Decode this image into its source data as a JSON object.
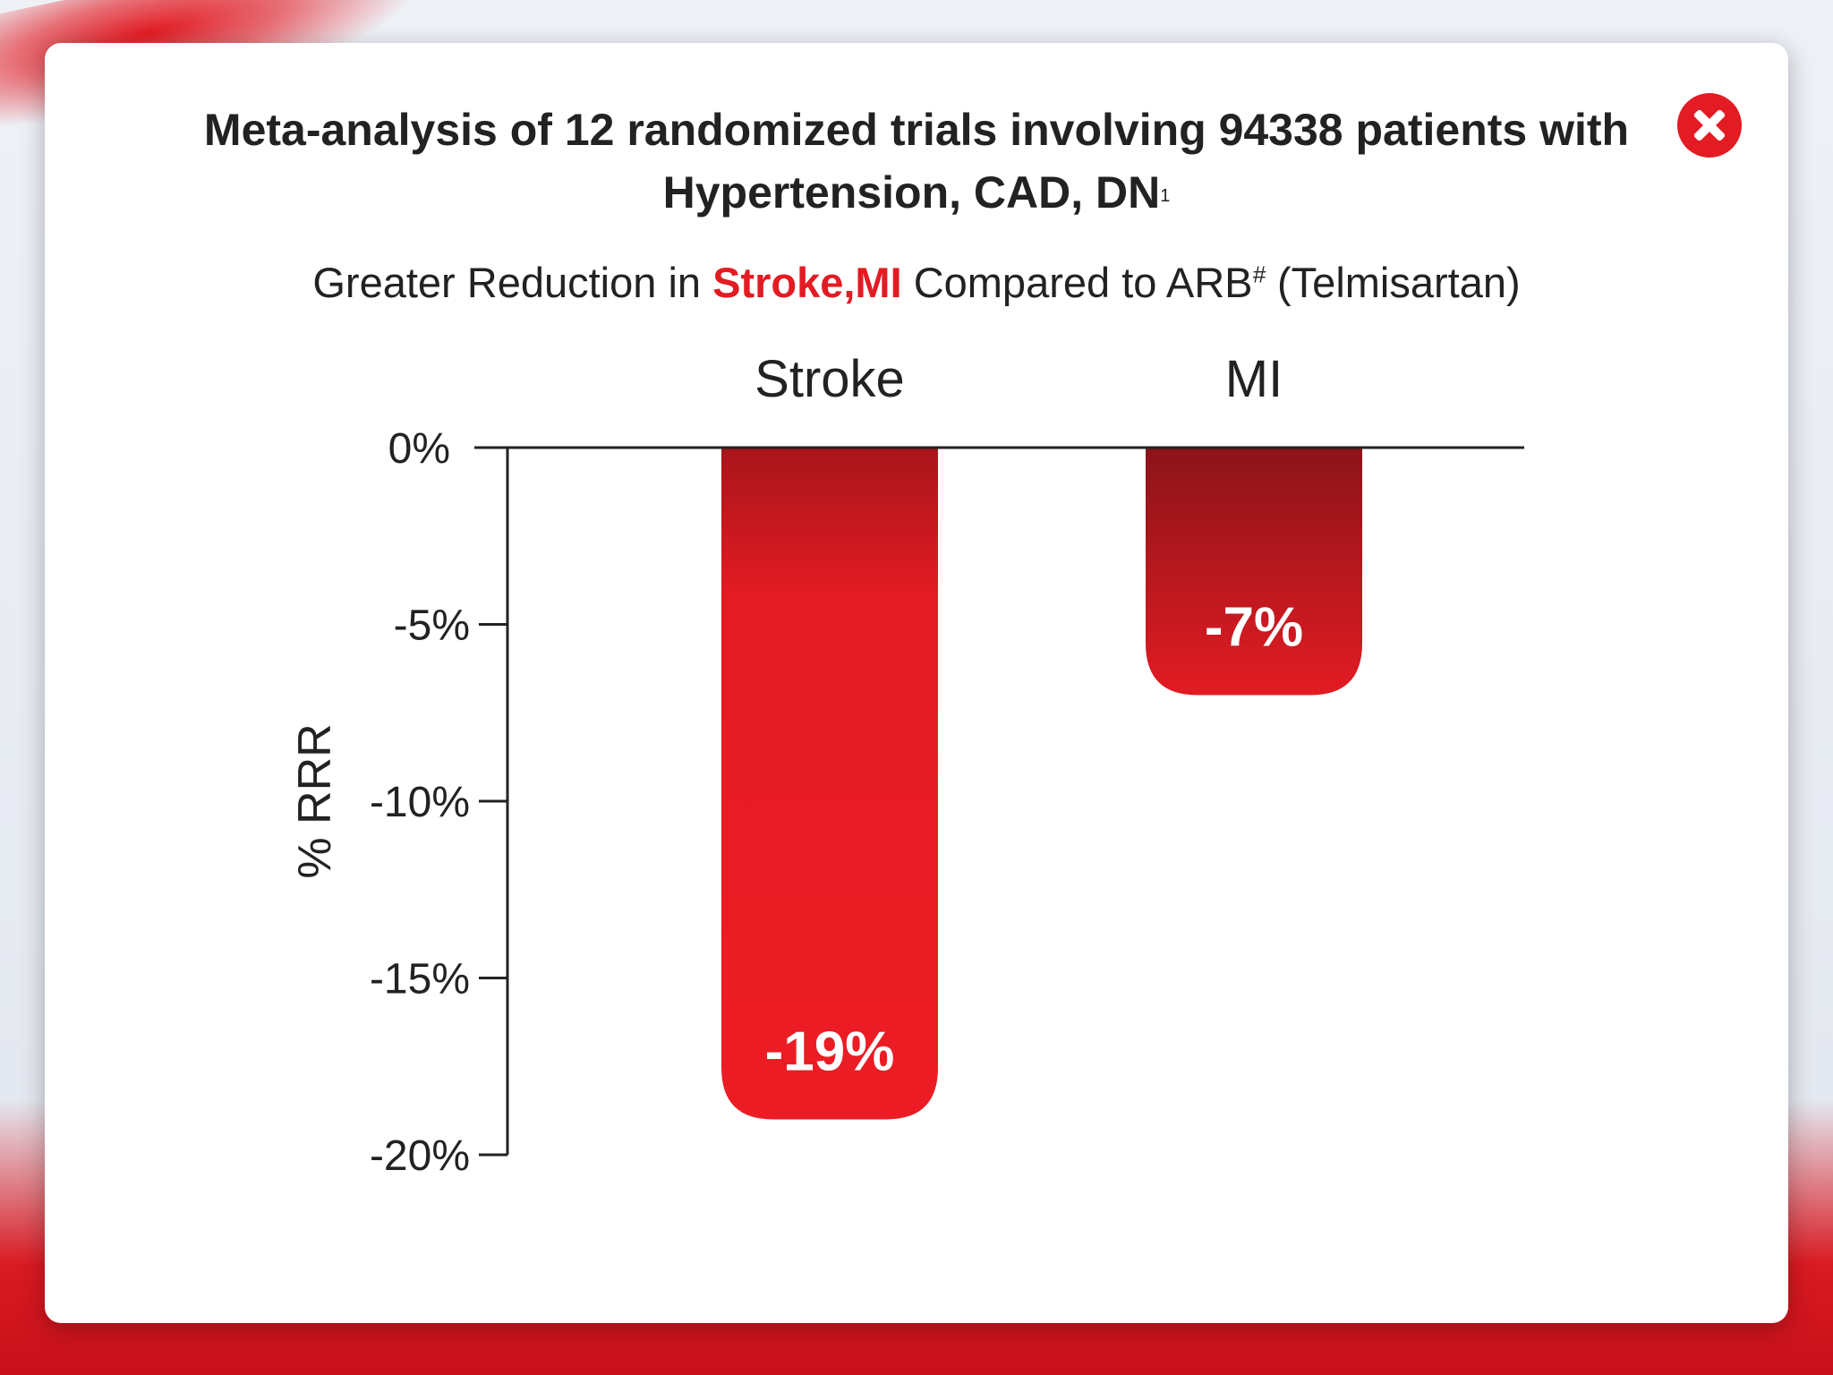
{
  "header": {
    "title_line1": "Meta-analysis of 12 randomized trials involving 94338 patients with",
    "title_line2": "Hypertension, CAD, DN",
    "title_superscript": "1",
    "close_icon": "close-icon"
  },
  "subtitle": {
    "prefix": "Greater Reduction in ",
    "highlight": "Stroke,MI",
    "middle": " Compared to ARB",
    "superscript": "#",
    "suffix": " (Telmisartan)"
  },
  "colors": {
    "accent": "#e31b23",
    "accent_dark": "#8b1419",
    "text": "#222222"
  },
  "chart_data": {
    "type": "bar",
    "categories": [
      "Stroke",
      "MI"
    ],
    "values": [
      -19,
      -7
    ],
    "data_labels": [
      "-19%",
      "-7%"
    ],
    "ylabel": "% RRR",
    "ylim": [
      -20,
      0
    ],
    "yticks": [
      0,
      -5,
      -10,
      -15,
      -20
    ],
    "ytick_labels": [
      "0%",
      "-5%",
      "-10%",
      "-15%",
      "-20%"
    ],
    "category_label_position": "top",
    "grid": false
  }
}
